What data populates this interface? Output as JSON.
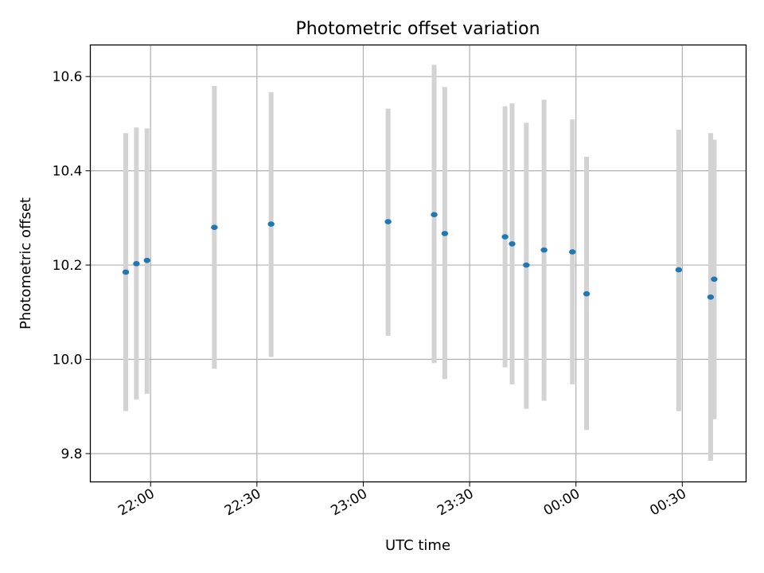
{
  "chart_data": {
    "type": "scatter",
    "title": "Photometric offset variation",
    "xlabel": "UTC time",
    "ylabel": "Photometric offset",
    "x_axis_type": "time",
    "x_tick_labels": [
      "22:00",
      "22:30",
      "23:00",
      "23:30",
      "00:00",
      "00:30"
    ],
    "xlim": [
      "21:43",
      "00:48"
    ],
    "y_ticks": [
      9.8,
      10.0,
      10.2,
      10.4,
      10.6
    ],
    "ylim": [
      9.74,
      10.667
    ],
    "grid": true,
    "marker_color": "#1f77b4",
    "errorbar_color": "#d3d3d3",
    "points": [
      {
        "x": "21:53",
        "y": 10.185,
        "ylow": 9.89,
        "yhigh": 10.48
      },
      {
        "x": "21:56",
        "y": 10.203,
        "ylow": 9.915,
        "yhigh": 10.492
      },
      {
        "x": "21:59",
        "y": 10.21,
        "ylow": 9.927,
        "yhigh": 10.49
      },
      {
        "x": "22:18",
        "y": 10.28,
        "ylow": 9.98,
        "yhigh": 10.58
      },
      {
        "x": "22:34",
        "y": 10.287,
        "ylow": 10.005,
        "yhigh": 10.567
      },
      {
        "x": "23:07",
        "y": 10.292,
        "ylow": 10.05,
        "yhigh": 10.532
      },
      {
        "x": "23:20",
        "y": 10.307,
        "ylow": 9.992,
        "yhigh": 10.625
      },
      {
        "x": "23:23",
        "y": 10.267,
        "ylow": 9.958,
        "yhigh": 10.578
      },
      {
        "x": "23:40",
        "y": 10.26,
        "ylow": 9.983,
        "yhigh": 10.537
      },
      {
        "x": "23:42",
        "y": 10.245,
        "ylow": 9.947,
        "yhigh": 10.543
      },
      {
        "x": "23:46",
        "y": 10.2,
        "ylow": 9.895,
        "yhigh": 10.502
      },
      {
        "x": "23:51",
        "y": 10.232,
        "ylow": 9.912,
        "yhigh": 10.551
      },
      {
        "x": "23:59",
        "y": 10.228,
        "ylow": 9.947,
        "yhigh": 10.509
      },
      {
        "x": "00:03",
        "y": 10.139,
        "ylow": 9.85,
        "yhigh": 10.43
      },
      {
        "x": "00:29",
        "y": 10.19,
        "ylow": 9.89,
        "yhigh": 10.487
      },
      {
        "x": "00:38",
        "y": 10.132,
        "ylow": 9.785,
        "yhigh": 10.48
      },
      {
        "x": "00:39",
        "y": 10.17,
        "ylow": 9.873,
        "yhigh": 10.466
      }
    ]
  }
}
